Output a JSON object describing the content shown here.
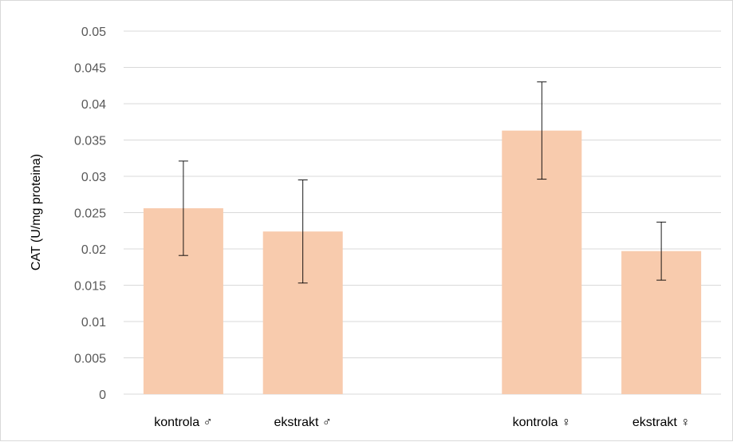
{
  "chart_data": {
    "type": "bar",
    "ylabel": "CAT (U/mg proteina)",
    "xlabel": "",
    "ylim": [
      0,
      0.05
    ],
    "yticks": [
      "0",
      "0.005",
      "0.01",
      "0.015",
      "0.02",
      "0.025",
      "0.03",
      "0.035",
      "0.04",
      "0.045",
      "0.05"
    ],
    "slots": [
      "kontrola ♂",
      "ekstrakt ♂",
      "",
      "kontrola ♀",
      "ekstrakt ♀"
    ],
    "categories": [
      "kontrola ♂",
      "ekstrakt ♂",
      "kontrola ♀",
      "ekstrakt ♀"
    ],
    "values": [
      0.0256,
      0.0224,
      0.0363,
      0.0197
    ],
    "error": [
      0.0065,
      0.0071,
      0.0067,
      0.004
    ],
    "bar_color": "#f8cbad",
    "error_color": "#000000",
    "grid": true,
    "grid_color": "#d9d9d9",
    "legend": "none"
  }
}
